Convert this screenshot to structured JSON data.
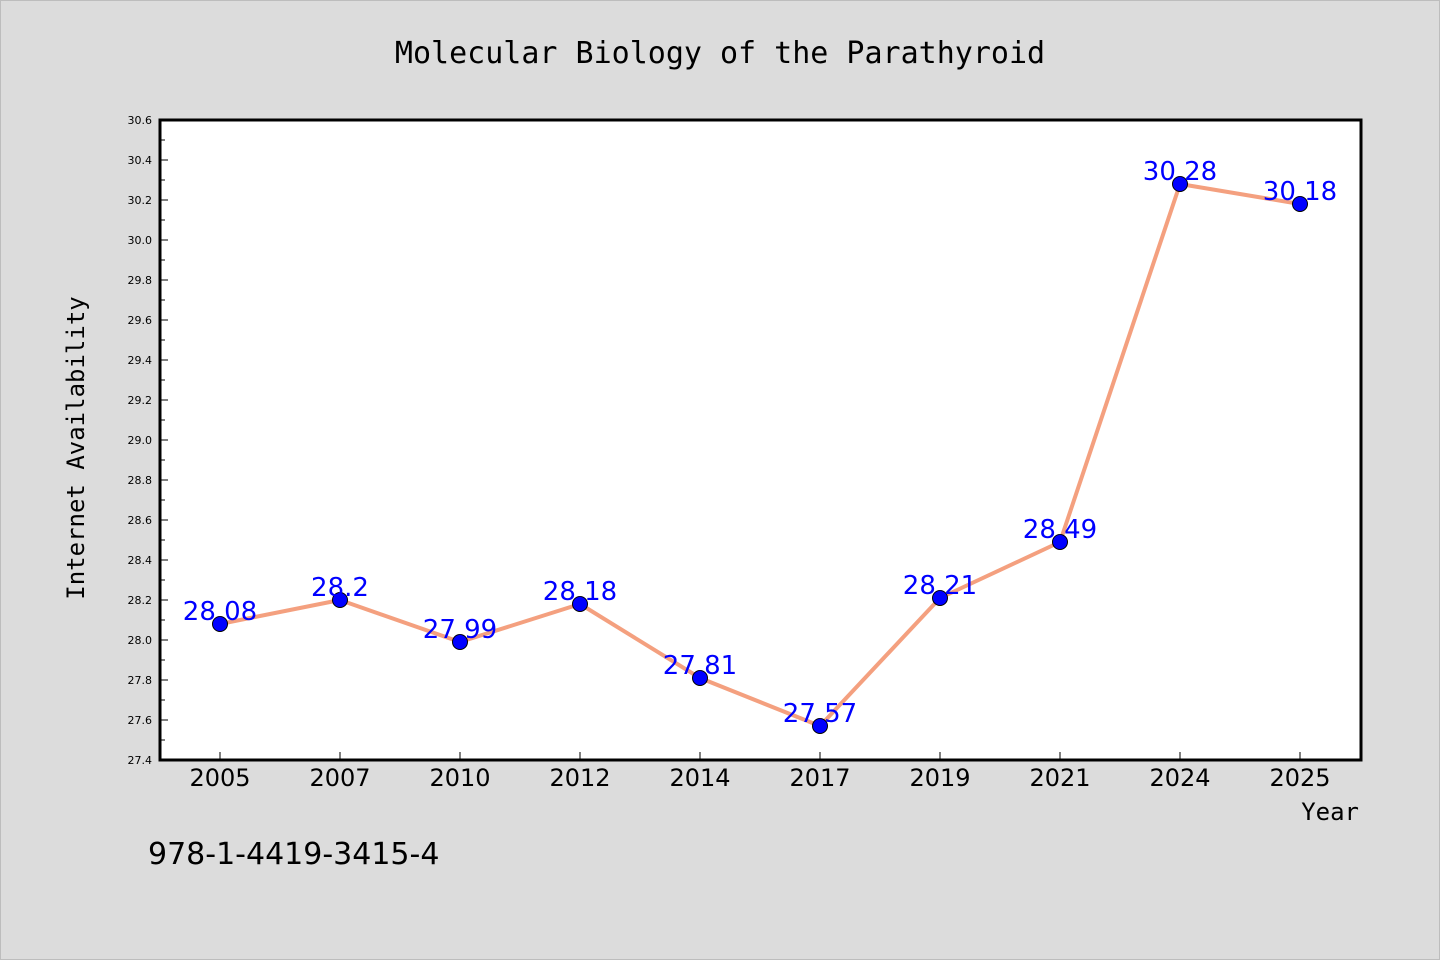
{
  "colors": {
    "background": "#dcdcdc",
    "plot_background": "#ffffff",
    "line": "#f4a07f",
    "marker": "#0000ff",
    "data_label": "#0000ff"
  },
  "footer": {
    "isbn": "978-1-4419-3415-4"
  },
  "chart_data": {
    "type": "line",
    "title": "Molecular Biology of the Parathyroid",
    "xlabel": "Year",
    "ylabel": "Internet Availability",
    "categories": [
      "2005",
      "2007",
      "2010",
      "2012",
      "2014",
      "2017",
      "2019",
      "2021",
      "2024",
      "2025"
    ],
    "series": [
      {
        "values": [
          28.08,
          28.2,
          27.99,
          28.18,
          27.81,
          27.57,
          28.21,
          28.49,
          30.28,
          30.18
        ],
        "labels": [
          "28.08",
          "28.2",
          "27.99",
          "28.18",
          "27.81",
          "27.57",
          "28.21",
          "28.49",
          "30.28",
          "30.18"
        ]
      }
    ],
    "ylim": [
      27.4,
      30.6
    ],
    "yticks": [
      "27.4",
      "27.6",
      "27.8",
      "28.0",
      "28.2",
      "28.4",
      "28.6",
      "28.8",
      "29.0",
      "29.2",
      "29.4",
      "29.6",
      "29.8",
      "30.0",
      "30.2",
      "30.4",
      "30.6"
    ],
    "grid": false,
    "legend": "none"
  }
}
